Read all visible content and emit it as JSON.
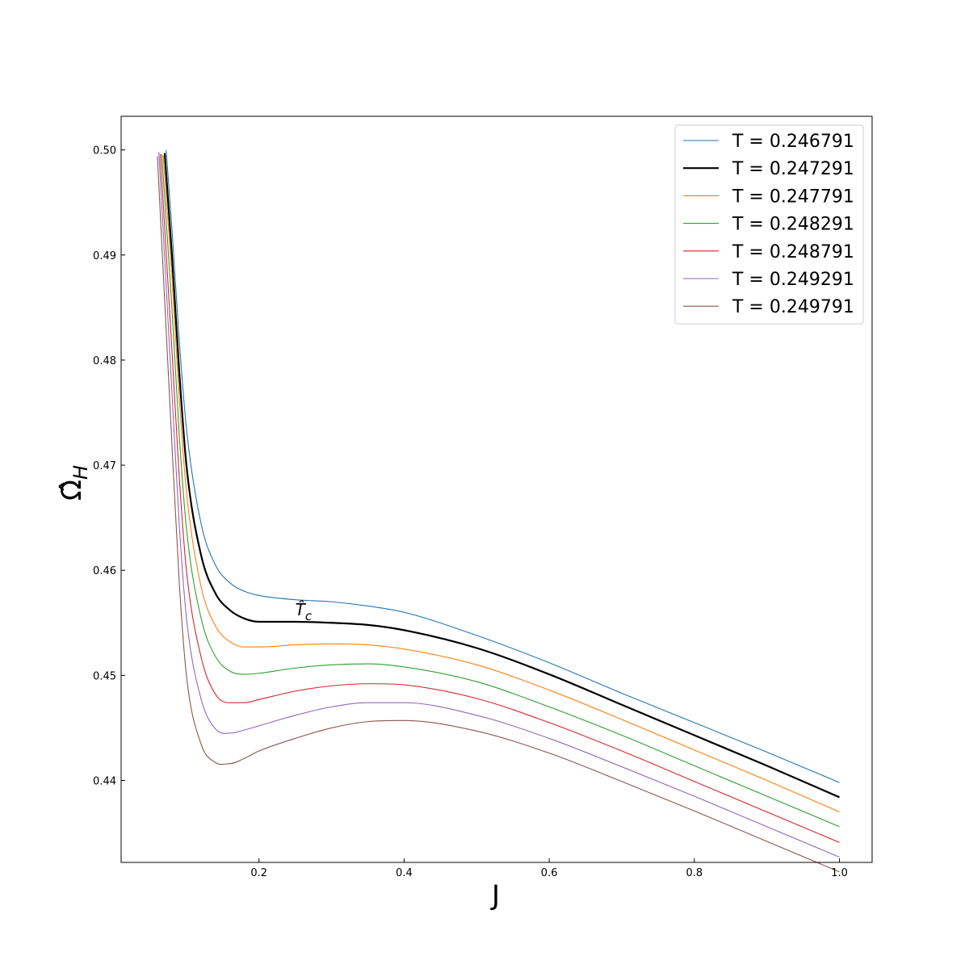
{
  "chart_data": {
    "type": "line",
    "title": "",
    "xlabel": "J",
    "ylabel": "Ω̂",
    "ylabel_sub": "H",
    "xlim": [
      0.01,
      1.045
    ],
    "ylim": [
      0.4322,
      0.5032
    ],
    "xticks": [
      0.2,
      0.4,
      0.6,
      0.8,
      1.0
    ],
    "xtick_labels": [
      "0.2",
      "0.4",
      "0.6",
      "0.8",
      "1.0"
    ],
    "yticks": [
      0.44,
      0.45,
      0.46,
      0.47,
      0.48,
      0.49,
      0.5
    ],
    "ytick_labels": [
      "0.44",
      "0.45",
      "0.46",
      "0.47",
      "0.48",
      "0.49",
      "0.50"
    ],
    "grid": false,
    "legend_position": "top-right",
    "annotation": {
      "text": "T̂",
      "sub": "c",
      "x": 0.25,
      "y": 0.4557
    },
    "series": [
      {
        "name": "T = 0.246791",
        "color": "#1f77b4",
        "bold": false,
        "x": [
          0.072,
          0.08,
          0.09,
          0.1,
          0.12,
          0.14,
          0.16,
          0.18,
          0.2,
          0.25,
          0.3,
          0.35,
          0.4,
          0.5,
          0.6,
          0.7,
          0.8,
          0.9,
          1.0
        ],
        "y": [
          0.5,
          0.4925,
          0.482,
          0.4735,
          0.4645,
          0.4605,
          0.4588,
          0.458,
          0.4576,
          0.4572,
          0.457,
          0.4566,
          0.456,
          0.4538,
          0.4512,
          0.4483,
          0.4455,
          0.4427,
          0.4398
        ]
      },
      {
        "name": "T = 0.247291",
        "color": "#000000",
        "bold": true,
        "x": [
          0.07,
          0.08,
          0.09,
          0.1,
          0.12,
          0.14,
          0.16,
          0.18,
          0.2,
          0.25,
          0.3,
          0.35,
          0.4,
          0.5,
          0.6,
          0.7,
          0.8,
          0.9,
          1.0
        ],
        "y": [
          0.4997,
          0.49,
          0.479,
          0.47,
          0.4615,
          0.4578,
          0.4562,
          0.4554,
          0.4551,
          0.4551,
          0.455,
          0.4548,
          0.4543,
          0.4526,
          0.4501,
          0.4472,
          0.4443,
          0.4414,
          0.4384
        ]
      },
      {
        "name": "T = 0.247791",
        "color": "#ff7f0e",
        "bold": false,
        "x": [
          0.068,
          0.08,
          0.09,
          0.1,
          0.12,
          0.14,
          0.16,
          0.18,
          0.2,
          0.25,
          0.3,
          0.35,
          0.4,
          0.5,
          0.6,
          0.7,
          0.8,
          0.9,
          1.0
        ],
        "y": [
          0.4995,
          0.488,
          0.4765,
          0.4675,
          0.4585,
          0.4547,
          0.4532,
          0.4527,
          0.4527,
          0.4529,
          0.453,
          0.4529,
          0.4525,
          0.451,
          0.4486,
          0.4458,
          0.4429,
          0.44,
          0.437
        ]
      },
      {
        "name": "T = 0.248291",
        "color": "#2ca02c",
        "bold": false,
        "x": [
          0.066,
          0.08,
          0.09,
          0.1,
          0.12,
          0.14,
          0.16,
          0.18,
          0.2,
          0.25,
          0.3,
          0.35,
          0.4,
          0.5,
          0.6,
          0.7,
          0.8,
          0.9,
          1.0
        ],
        "y": [
          0.4996,
          0.485,
          0.473,
          0.464,
          0.4555,
          0.4518,
          0.4504,
          0.4501,
          0.4502,
          0.4507,
          0.451,
          0.4511,
          0.4508,
          0.4494,
          0.447,
          0.4443,
          0.4414,
          0.4385,
          0.4356
        ]
      },
      {
        "name": "T = 0.248791",
        "color": "#d62728",
        "bold": false,
        "x": [
          0.064,
          0.08,
          0.09,
          0.1,
          0.12,
          0.14,
          0.16,
          0.18,
          0.2,
          0.25,
          0.3,
          0.35,
          0.4,
          0.5,
          0.6,
          0.7,
          0.8,
          0.9,
          1.0
        ],
        "y": [
          0.4996,
          0.481,
          0.469,
          0.46,
          0.4518,
          0.4482,
          0.4474,
          0.4474,
          0.4477,
          0.4485,
          0.449,
          0.4492,
          0.4491,
          0.4478,
          0.4455,
          0.4428,
          0.4399,
          0.437,
          0.4341
        ]
      },
      {
        "name": "T = 0.249291",
        "color": "#9467bd",
        "bold": false,
        "x": [
          0.062,
          0.08,
          0.09,
          0.1,
          0.12,
          0.14,
          0.16,
          0.18,
          0.2,
          0.25,
          0.3,
          0.35,
          0.4,
          0.5,
          0.6,
          0.7,
          0.8,
          0.9,
          1.0
        ],
        "y": [
          0.4998,
          0.477,
          0.4645,
          0.4555,
          0.4478,
          0.4449,
          0.4445,
          0.4448,
          0.4452,
          0.4462,
          0.447,
          0.4474,
          0.4474,
          0.4462,
          0.444,
          0.4413,
          0.4385,
          0.4356,
          0.4327
        ]
      },
      {
        "name": "T = 0.249791",
        "color": "#8c564b",
        "bold": false,
        "x": [
          0.06,
          0.08,
          0.09,
          0.1,
          0.12,
          0.14,
          0.16,
          0.18,
          0.2,
          0.25,
          0.3,
          0.35,
          0.4,
          0.5,
          0.6,
          0.7,
          0.8,
          0.9,
          1.0
        ],
        "y": [
          0.4994,
          0.472,
          0.459,
          0.45,
          0.4435,
          0.4417,
          0.4416,
          0.4421,
          0.4428,
          0.444,
          0.445,
          0.4456,
          0.4457,
          0.4447,
          0.4426,
          0.4399,
          0.4371,
          0.4342,
          0.4313
        ]
      }
    ]
  }
}
